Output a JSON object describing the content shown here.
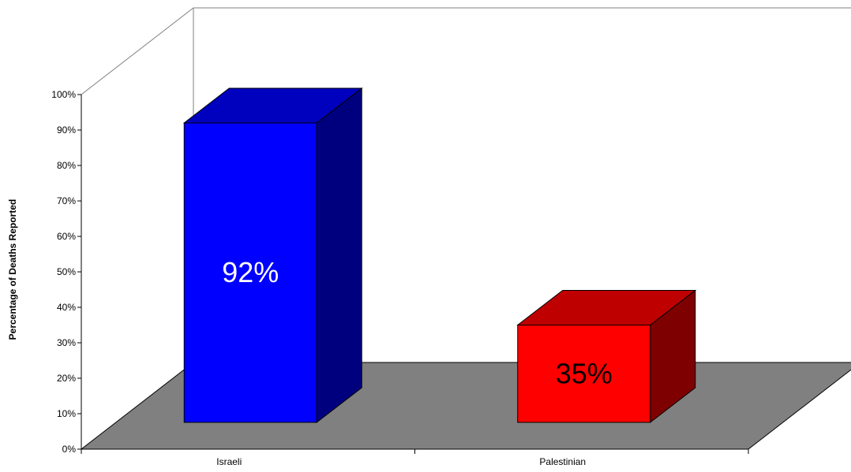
{
  "chart_data": {
    "type": "bar",
    "style": "3d",
    "categories": [
      "Israeli",
      "Palestinian"
    ],
    "values": [
      92,
      35
    ],
    "data_labels": [
      "92%",
      "35%"
    ],
    "ylabel": "Percentage of Deaths Reported",
    "xlabel": "",
    "ylim": [
      0,
      100
    ],
    "yticks": [
      "0%",
      "10%",
      "20%",
      "30%",
      "40%",
      "50%",
      "60%",
      "70%",
      "80%",
      "90%",
      "100%"
    ],
    "grid": false,
    "legend": "none",
    "colors": {
      "bars": [
        {
          "front": "#0000ff",
          "top": "#0000bf",
          "side": "#00007f",
          "label": "#ffffff"
        },
        {
          "front": "#ff0000",
          "top": "#bf0000",
          "side": "#7f0000",
          "label": "#000000"
        }
      ],
      "floor": "#808080",
      "wall_lines": "#808080",
      "axis": "#000000"
    }
  }
}
